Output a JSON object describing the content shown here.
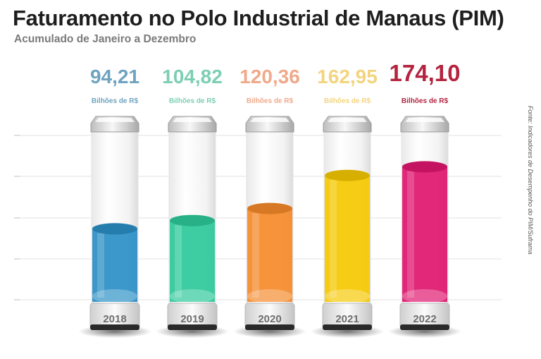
{
  "header": {
    "title": "Faturamento no Polo Industrial de Manaus (PIM)",
    "subtitle": "Acumulado de Janeiro a Dezembro",
    "source": "Fonte: Indicadores de Desempenho do PIM/Suframa"
  },
  "chart_data": {
    "type": "bar",
    "title": "Faturamento no Polo Industrial de Manaus (PIM)",
    "subtitle": "Acumulado de Janeiro a Dezembro",
    "categories": [
      "2018",
      "2019",
      "2020",
      "2021",
      "2022"
    ],
    "values": [
      94.21,
      104.82,
      120.36,
      162.95,
      174.1
    ],
    "value_labels": [
      "94,21",
      "104,82",
      "120,36",
      "162,95",
      "174,10"
    ],
    "unit_label": "Bilhões de R$",
    "colors": [
      "#2b8fc6",
      "#2ec99a",
      "#f58a2a",
      "#f5c800",
      "#e0166e"
    ],
    "label_colors": [
      "#6fa3c0",
      "#7ccfb3",
      "#f0a98a",
      "#f3d47e",
      "#b3243f"
    ],
    "grid": true,
    "ylim": [
      0,
      200
    ]
  }
}
